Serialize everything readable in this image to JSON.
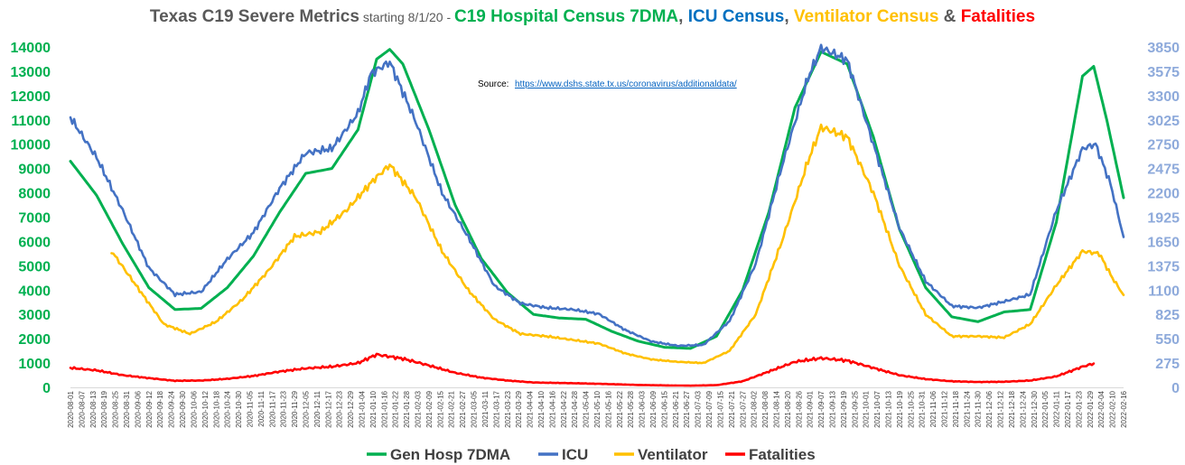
{
  "chart_data": {
    "type": "line",
    "title_parts": [
      {
        "text": "Texas C19 Severe Metrics",
        "color": "#595959",
        "size": "lg"
      },
      {
        "text": " starting 8/1/20 - ",
        "color": "#595959",
        "size": "sm"
      },
      {
        "text": "C19 Hospital Census 7DMA",
        "color": "#00b050",
        "size": "lg"
      },
      {
        "text": ", ",
        "color": "#595959",
        "size": "lg"
      },
      {
        "text": "ICU Census",
        "color": "#0070c0",
        "size": "lg"
      },
      {
        "text": ", ",
        "color": "#595959",
        "size": "lg"
      },
      {
        "text": "Ventilator Census",
        "color": "#ffc000",
        "size": "lg"
      },
      {
        "text": " & ",
        "color": "#595959",
        "size": "lg"
      },
      {
        "text": "Fatalities",
        "color": "#ff0000",
        "size": "lg"
      }
    ],
    "source_label": "Source:",
    "source_url": "https://www.dshs.state.tx.us/coronavirus/additionaldata/",
    "x_start": "2020-08-01",
    "x_end": "2022-02-16",
    "x_tick_step_days": 6,
    "y_left": {
      "min": 0,
      "max": 14000,
      "ticks": [
        "0",
        "1000",
        "2000",
        "3000",
        "4000",
        "5000",
        "6000",
        "7000",
        "8000",
        "9000",
        "10000",
        "11000",
        "12000",
        "13000",
        "14000"
      ],
      "color": "#00b050"
    },
    "y_right": {
      "min": 0,
      "max": 3850,
      "ticks": [
        "0",
        "275",
        "550",
        "825",
        "1100",
        "1375",
        "1650",
        "1925",
        "2200",
        "2475",
        "2750",
        "3025",
        "3300",
        "3575",
        "3850"
      ],
      "color": "#8eaadb"
    },
    "legend": {
      "position": "bottom"
    },
    "series": [
      {
        "name": "Gen Hosp 7DMA",
        "axis": "left",
        "color": "#00b050",
        "points": [
          [
            "2020-08-01",
            9300
          ],
          [
            "2020-08-15",
            7900
          ],
          [
            "2020-08-29",
            5900
          ],
          [
            "2020-09-12",
            4100
          ],
          [
            "2020-09-26",
            3200
          ],
          [
            "2020-10-10",
            3250
          ],
          [
            "2020-10-24",
            4100
          ],
          [
            "2020-11-07",
            5400
          ],
          [
            "2020-11-21",
            7200
          ],
          [
            "2020-12-05",
            8800
          ],
          [
            "2020-12-19",
            9000
          ],
          [
            "2021-01-02",
            10600
          ],
          [
            "2021-01-12",
            13500
          ],
          [
            "2021-01-19",
            13900
          ],
          [
            "2021-01-26",
            13300
          ],
          [
            "2021-02-09",
            10600
          ],
          [
            "2021-02-23",
            7500
          ],
          [
            "2021-03-09",
            5300
          ],
          [
            "2021-03-23",
            3900
          ],
          [
            "2021-04-06",
            3000
          ],
          [
            "2021-04-20",
            2850
          ],
          [
            "2021-05-04",
            2800
          ],
          [
            "2021-05-18",
            2300
          ],
          [
            "2021-06-01",
            1900
          ],
          [
            "2021-06-15",
            1650
          ],
          [
            "2021-06-29",
            1600
          ],
          [
            "2021-07-13",
            2100
          ],
          [
            "2021-07-27",
            4000
          ],
          [
            "2021-08-10",
            7200
          ],
          [
            "2021-08-24",
            11500
          ],
          [
            "2021-09-07",
            13800
          ],
          [
            "2021-09-21",
            13300
          ],
          [
            "2021-10-05",
            10300
          ],
          [
            "2021-10-19",
            6500
          ],
          [
            "2021-11-02",
            4100
          ],
          [
            "2021-11-16",
            2900
          ],
          [
            "2021-11-30",
            2700
          ],
          [
            "2021-12-14",
            3100
          ],
          [
            "2021-12-28",
            3200
          ],
          [
            "2022-01-11",
            6800
          ],
          [
            "2022-01-25",
            12800
          ],
          [
            "2022-01-31",
            13200
          ],
          [
            "2022-02-07",
            11000
          ],
          [
            "2022-02-16",
            7800
          ]
        ]
      },
      {
        "name": "ICU",
        "axis": "right",
        "color": "#4472c4",
        "points": [
          [
            "2020-08-01",
            3050
          ],
          [
            "2020-08-15",
            2600
          ],
          [
            "2020-08-29",
            2000
          ],
          [
            "2020-09-12",
            1350
          ],
          [
            "2020-09-26",
            1050
          ],
          [
            "2020-10-10",
            1080
          ],
          [
            "2020-10-24",
            1450
          ],
          [
            "2020-11-07",
            1750
          ],
          [
            "2020-11-21",
            2250
          ],
          [
            "2020-12-05",
            2650
          ],
          [
            "2020-12-19",
            2700
          ],
          [
            "2021-01-02",
            3100
          ],
          [
            "2021-01-09",
            3550
          ],
          [
            "2021-01-19",
            3680
          ],
          [
            "2021-02-02",
            3000
          ],
          [
            "2021-02-16",
            2200
          ],
          [
            "2021-03-02",
            1700
          ],
          [
            "2021-03-16",
            1150
          ],
          [
            "2021-03-30",
            950
          ],
          [
            "2021-04-13",
            900
          ],
          [
            "2021-04-27",
            880
          ],
          [
            "2021-05-11",
            830
          ],
          [
            "2021-05-25",
            650
          ],
          [
            "2021-06-08",
            520
          ],
          [
            "2021-06-22",
            470
          ],
          [
            "2021-07-06",
            480
          ],
          [
            "2021-07-20",
            750
          ],
          [
            "2021-08-03",
            1400
          ],
          [
            "2021-08-17",
            2500
          ],
          [
            "2021-08-31",
            3500
          ],
          [
            "2021-09-07",
            3840
          ],
          [
            "2021-09-21",
            3700
          ],
          [
            "2021-10-05",
            2750
          ],
          [
            "2021-10-19",
            1800
          ],
          [
            "2021-11-02",
            1200
          ],
          [
            "2021-11-16",
            920
          ],
          [
            "2021-11-30",
            900
          ],
          [
            "2021-12-14",
            970
          ],
          [
            "2021-12-28",
            1050
          ],
          [
            "2022-01-11",
            2000
          ],
          [
            "2022-01-25",
            2700
          ],
          [
            "2022-02-01",
            2750
          ],
          [
            "2022-02-09",
            2300
          ],
          [
            "2022-02-16",
            1700
          ]
        ]
      },
      {
        "name": "Ventilator",
        "axis": "left",
        "color": "#ffc000",
        "points": [
          [
            "2020-08-23",
            5600
          ],
          [
            "2020-09-06",
            4100
          ],
          [
            "2020-09-20",
            2600
          ],
          [
            "2020-10-04",
            2200
          ],
          [
            "2020-10-18",
            2700
          ],
          [
            "2020-11-01",
            3600
          ],
          [
            "2020-11-15",
            4800
          ],
          [
            "2020-11-29",
            6200
          ],
          [
            "2020-12-13",
            6400
          ],
          [
            "2020-12-27",
            7300
          ],
          [
            "2021-01-10",
            8500
          ],
          [
            "2021-01-19",
            9150
          ],
          [
            "2021-02-02",
            7800
          ],
          [
            "2021-02-16",
            5600
          ],
          [
            "2021-03-02",
            4000
          ],
          [
            "2021-03-16",
            2800
          ],
          [
            "2021-03-30",
            2200
          ],
          [
            "2021-04-13",
            2100
          ],
          [
            "2021-04-27",
            1950
          ],
          [
            "2021-05-11",
            1800
          ],
          [
            "2021-05-25",
            1400
          ],
          [
            "2021-06-08",
            1150
          ],
          [
            "2021-06-22",
            1050
          ],
          [
            "2021-07-06",
            1000
          ],
          [
            "2021-07-20",
            1500
          ],
          [
            "2021-08-03",
            3000
          ],
          [
            "2021-08-17",
            6000
          ],
          [
            "2021-08-31",
            9300
          ],
          [
            "2021-09-07",
            10700
          ],
          [
            "2021-09-21",
            10300
          ],
          [
            "2021-10-05",
            8000
          ],
          [
            "2021-10-19",
            5000
          ],
          [
            "2021-11-02",
            3000
          ],
          [
            "2021-11-16",
            2100
          ],
          [
            "2021-11-30",
            2100
          ],
          [
            "2021-12-14",
            2050
          ],
          [
            "2021-12-28",
            2600
          ],
          [
            "2022-01-11",
            4200
          ],
          [
            "2022-01-25",
            5600
          ],
          [
            "2022-02-03",
            5500
          ],
          [
            "2022-02-10",
            4500
          ],
          [
            "2022-02-16",
            3800
          ]
        ]
      },
      {
        "name": "Fatalities",
        "axis": "left",
        "color": "#ff0000",
        "points": [
          [
            "2020-08-01",
            800
          ],
          [
            "2020-08-15",
            700
          ],
          [
            "2020-08-29",
            500
          ],
          [
            "2020-09-12",
            380
          ],
          [
            "2020-09-26",
            270
          ],
          [
            "2020-10-10",
            280
          ],
          [
            "2020-10-24",
            350
          ],
          [
            "2020-11-07",
            470
          ],
          [
            "2020-11-21",
            650
          ],
          [
            "2020-12-05",
            780
          ],
          [
            "2020-12-19",
            850
          ],
          [
            "2021-01-02",
            1000
          ],
          [
            "2021-01-12",
            1350
          ],
          [
            "2021-01-26",
            1180
          ],
          [
            "2021-02-09",
            900
          ],
          [
            "2021-02-23",
            600
          ],
          [
            "2021-03-09",
            400
          ],
          [
            "2021-03-23",
            280
          ],
          [
            "2021-04-06",
            200
          ],
          [
            "2021-04-20",
            180
          ],
          [
            "2021-05-04",
            160
          ],
          [
            "2021-05-18",
            130
          ],
          [
            "2021-06-01",
            100
          ],
          [
            "2021-06-15",
            80
          ],
          [
            "2021-06-29",
            70
          ],
          [
            "2021-07-13",
            90
          ],
          [
            "2021-07-27",
            250
          ],
          [
            "2021-08-10",
            650
          ],
          [
            "2021-08-24",
            1050
          ],
          [
            "2021-09-07",
            1200
          ],
          [
            "2021-09-21",
            1100
          ],
          [
            "2021-10-05",
            800
          ],
          [
            "2021-10-19",
            500
          ],
          [
            "2021-11-02",
            340
          ],
          [
            "2021-11-16",
            250
          ],
          [
            "2021-11-30",
            220
          ],
          [
            "2021-12-14",
            230
          ],
          [
            "2021-12-28",
            280
          ],
          [
            "2022-01-11",
            450
          ],
          [
            "2022-01-25",
            850
          ],
          [
            "2022-01-31",
            980
          ]
        ]
      }
    ]
  }
}
